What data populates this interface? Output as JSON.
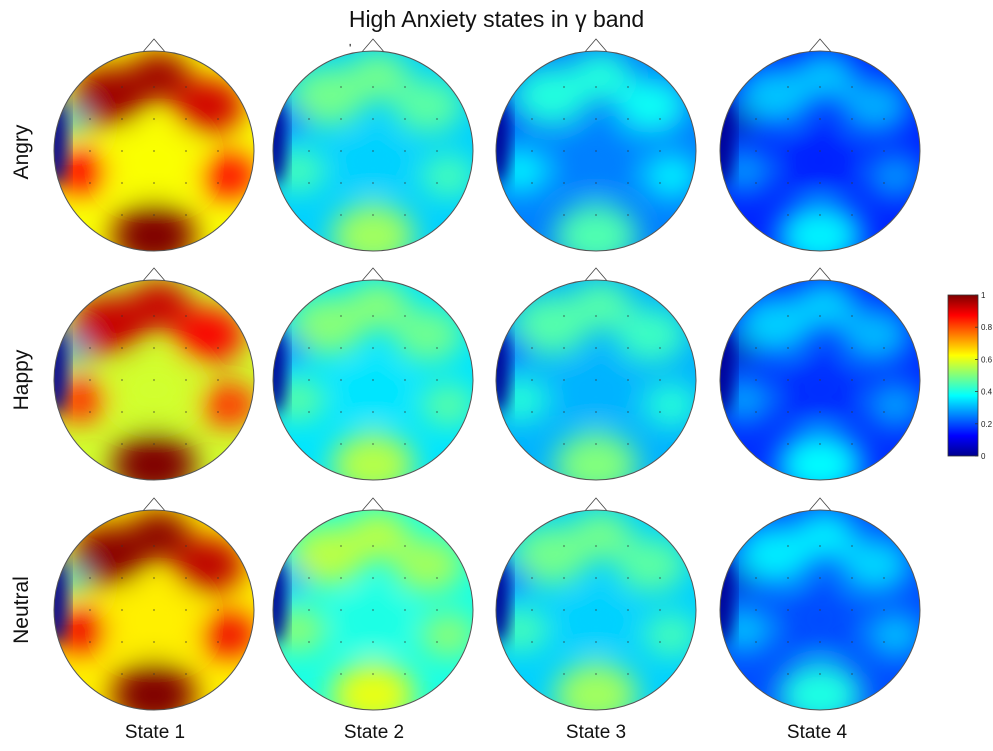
{
  "chart_data": {
    "type": "heatmap",
    "title": "High Anxiety states in γ band",
    "rows": [
      "Angry",
      "Happy",
      "Neutral"
    ],
    "columns": [
      "State 1",
      "State 2",
      "State 3",
      "State 4"
    ],
    "value_range": [
      0,
      1
    ],
    "colormap": "jet",
    "colorbar_ticks": [
      "0",
      "0.2",
      "0.4",
      "0.6",
      "0.8",
      "1"
    ],
    "colorbar_tick_values": [
      0,
      0.2,
      0.4,
      0.6,
      0.8,
      1
    ],
    "mean_activation": [
      [
        0.62,
        0.33,
        0.25,
        0.16
      ],
      [
        0.58,
        0.35,
        0.3,
        0.17
      ],
      [
        0.64,
        0.4,
        0.33,
        0.2
      ]
    ],
    "stray_mark": "ʹ"
  }
}
